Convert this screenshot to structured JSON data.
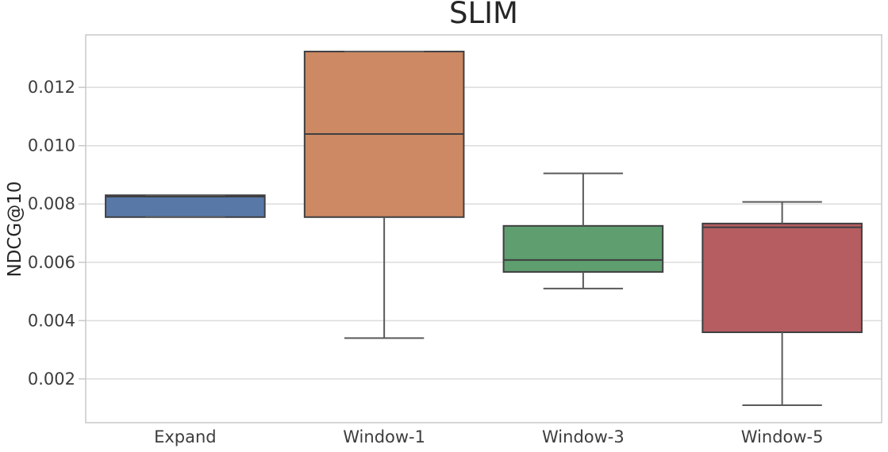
{
  "figure": {
    "background": "#ffffff"
  },
  "chart_data": {
    "type": "box",
    "title": "SLIM",
    "xlabel": "",
    "ylabel": "NDCG@10",
    "categories": [
      "Expand",
      "Window-1",
      "Window-3",
      "Window-5"
    ],
    "ylim": [
      0.0005,
      0.0138
    ],
    "yticks": [
      0.002,
      0.004,
      0.006,
      0.008,
      0.01,
      0.012
    ],
    "ytick_labels": [
      "0.002",
      "0.004",
      "0.006",
      "0.008",
      "0.010",
      "0.012"
    ],
    "grid": "horizontal-only",
    "legend": "none",
    "box_width_fraction": 0.8,
    "cap_width_fraction": 0.4,
    "series": [
      {
        "name": "Expand",
        "color": "#5878a8",
        "whisker_low": 0.00755,
        "q1": 0.00755,
        "median": 0.00825,
        "q3": 0.0083,
        "whisker_high": 0.0083
      },
      {
        "name": "Window-1",
        "color": "#cc8963",
        "whisker_low": 0.0034,
        "q1": 0.00755,
        "median": 0.0104,
        "q3": 0.01323,
        "whisker_high": 0.01323
      },
      {
        "name": "Window-3",
        "color": "#5f9e6e",
        "whisker_low": 0.0051,
        "q1": 0.00567,
        "median": 0.00608,
        "q3": 0.00725,
        "whisker_high": 0.00905
      },
      {
        "name": "Window-5",
        "color": "#b55d60",
        "whisker_low": 0.0011,
        "q1": 0.0036,
        "median": 0.0072,
        "q3": 0.00733,
        "whisker_high": 0.00807
      }
    ],
    "colors": {
      "box_edge": "#3f3f42",
      "median_line": "#3f3f42",
      "whisker": "#5a5a5a",
      "grid_line": "#dcdcdc",
      "spine": "#c9c9c9",
      "tick_text": "#3d3d3d",
      "title_text": "#262626",
      "plot_background": "#ffffff"
    }
  }
}
